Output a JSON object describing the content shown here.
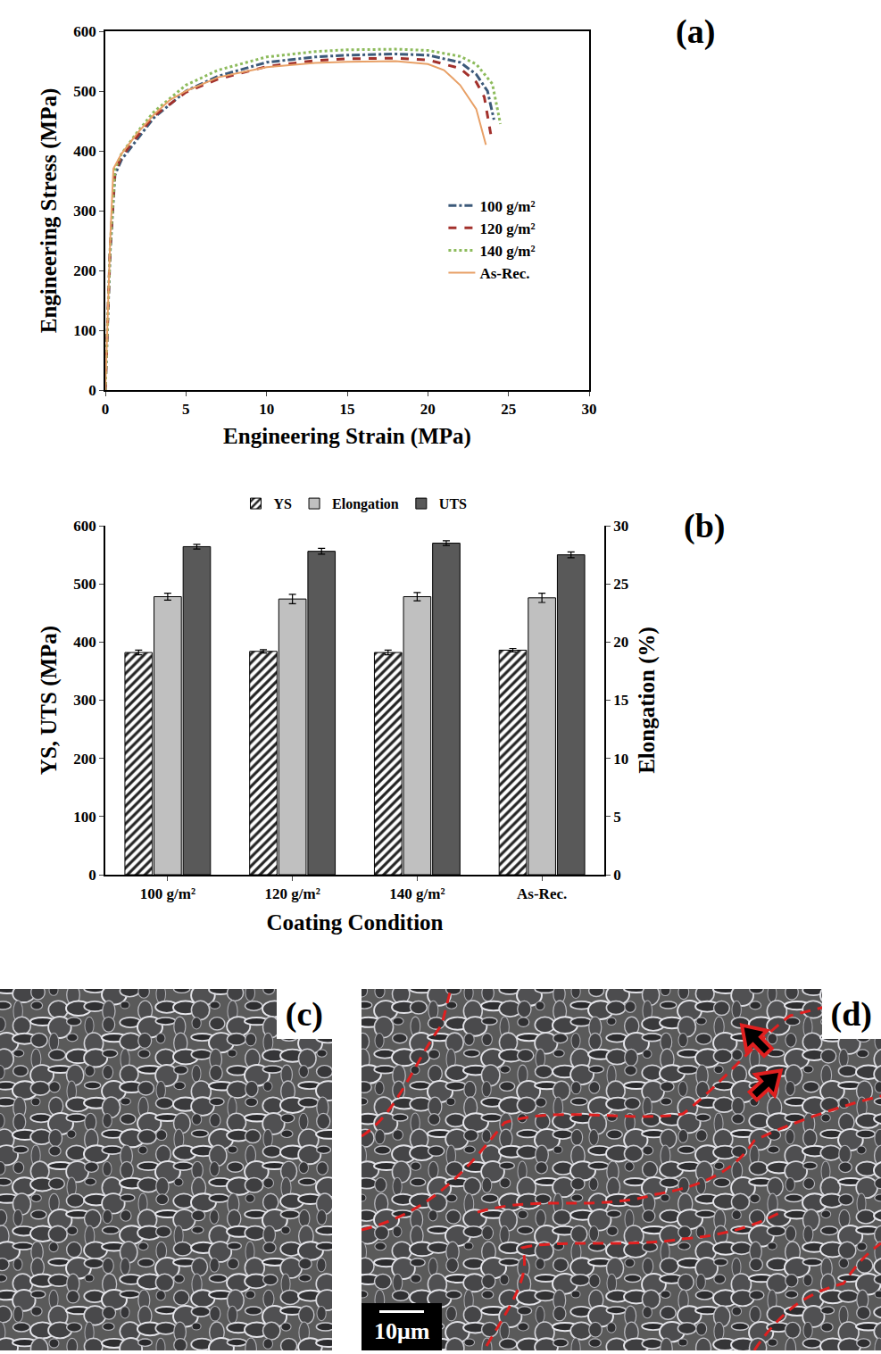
{
  "chart_data": [
    {
      "type": "line",
      "label": "(a)",
      "x_label": "Engineering Strain (MPa)",
      "y_label": "Engineering Stress (MPa)",
      "xlim": [
        0,
        30
      ],
      "xticks": [
        0,
        5,
        10,
        15,
        20,
        25,
        30
      ],
      "ylim": [
        0,
        600
      ],
      "yticks": [
        0,
        100,
        200,
        300,
        400,
        500,
        600
      ],
      "grid": false,
      "legend": "right",
      "series": [
        {
          "name": "100 g/m²",
          "color": "#3c5a7a",
          "line_style": "dashdot",
          "x": [
            0,
            0.3,
            0.6,
            1,
            2,
            3,
            5,
            7,
            10,
            13,
            15,
            18,
            20,
            22,
            23,
            23.7,
            24.1
          ],
          "values": [
            0,
            230,
            360,
            385,
            420,
            455,
            500,
            525,
            548,
            557,
            560,
            562,
            560,
            548,
            528,
            500,
            452
          ]
        },
        {
          "name": "120 g/m²",
          "color": "#a3312c",
          "line_style": "dash",
          "x": [
            0,
            0.3,
            0.6,
            1,
            2,
            3,
            5,
            7,
            10,
            13,
            15,
            18,
            20,
            22,
            23,
            23.5,
            23.9
          ],
          "values": [
            0,
            240,
            365,
            390,
            425,
            458,
            498,
            520,
            541,
            551,
            554,
            555,
            552,
            538,
            515,
            490,
            428
          ]
        },
        {
          "name": "140 g/m²",
          "color": "#8dbb5c",
          "line_style": "dot",
          "x": [
            0,
            0.3,
            0.6,
            1,
            2,
            3,
            5,
            7,
            10,
            13,
            15,
            18,
            20,
            22,
            23,
            24,
            24.5
          ],
          "values": [
            0,
            240,
            370,
            395,
            432,
            465,
            510,
            535,
            557,
            566,
            569,
            570,
            568,
            558,
            545,
            512,
            445
          ]
        },
        {
          "name": "As-Rec.",
          "color": "#e8a066",
          "line_style": "solid",
          "x": [
            0,
            0.3,
            0.5,
            1,
            2,
            3,
            4,
            5,
            7,
            10,
            13,
            15,
            18,
            20,
            21,
            22,
            23,
            23.6
          ],
          "values": [
            0,
            250,
            370,
            395,
            430,
            460,
            485,
            500,
            523,
            540,
            547,
            549,
            550,
            545,
            535,
            510,
            470,
            410
          ]
        }
      ]
    },
    {
      "type": "bar",
      "label": "(b)",
      "x_label": "Coating Condition",
      "y_label": "YS, UTS (MPa)",
      "y2_label": "Elongation (%)",
      "categories": [
        "100 g/m²",
        "120 g/m²",
        "140 g/m²",
        "As-Rec."
      ],
      "ylim": [
        0,
        600
      ],
      "yticks": [
        0,
        100,
        200,
        300,
        400,
        500,
        600
      ],
      "y2lim": [
        0,
        30
      ],
      "y2ticks": [
        0,
        5,
        10,
        15,
        20,
        25,
        30
      ],
      "grid": false,
      "legend": "top",
      "series": [
        {
          "name": "YS",
          "color": "#222222",
          "marker": "hatch",
          "values": [
            382,
            384,
            382,
            386
          ],
          "errors": [
            4,
            3,
            4,
            3
          ]
        },
        {
          "name": "Elongation",
          "color": "#c0c0c0",
          "axis": "y2",
          "values": [
            23.9,
            23.7,
            23.9,
            23.8
          ],
          "errors": [
            0.3,
            0.4,
            0.35,
            0.4
          ]
        },
        {
          "name": "UTS",
          "color": "#595959",
          "values": [
            564,
            556,
            570,
            550
          ],
          "errors": [
            4,
            5,
            4,
            5
          ]
        }
      ]
    }
  ],
  "images": [
    {
      "label": "(c)"
    },
    {
      "label": "(d)",
      "scale_bar": "10μm"
    }
  ]
}
